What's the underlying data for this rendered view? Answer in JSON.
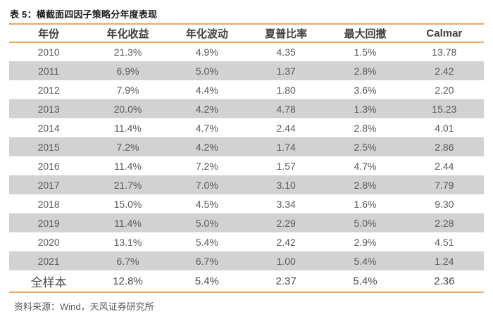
{
  "chart_data": {
    "type": "table",
    "title": "表 5：横截面四因子策略分年度表现",
    "columns": [
      "年份",
      "年化收益",
      "年化波动",
      "夏普比率",
      "最大回撤",
      "Calmar"
    ],
    "rows": [
      [
        "2010",
        "21.3%",
        "4.9%",
        "4.35",
        "1.5%",
        "13.78"
      ],
      [
        "2011",
        "6.9%",
        "5.0%",
        "1.37",
        "2.8%",
        "2.42"
      ],
      [
        "2012",
        "7.9%",
        "4.4%",
        "1.80",
        "3.6%",
        "2.20"
      ],
      [
        "2013",
        "20.0%",
        "4.2%",
        "4.78",
        "1.3%",
        "15.23"
      ],
      [
        "2014",
        "11.4%",
        "4.7%",
        "2.44",
        "2.8%",
        "4.01"
      ],
      [
        "2015",
        "7.2%",
        "4.2%",
        "1.74",
        "2.5%",
        "2.86"
      ],
      [
        "2016",
        "11.4%",
        "7.2%",
        "1.57",
        "4.7%",
        "2.44"
      ],
      [
        "2017",
        "21.7%",
        "7.0%",
        "3.10",
        "2.8%",
        "7.79"
      ],
      [
        "2018",
        "15.0%",
        "4.5%",
        "3.34",
        "1.6%",
        "9.30"
      ],
      [
        "2019",
        "11.4%",
        "5.0%",
        "2.29",
        "5.0%",
        "2.28"
      ],
      [
        "2020",
        "13.1%",
        "5.4%",
        "2.42",
        "2.9%",
        "4.51"
      ],
      [
        "2021",
        "6.7%",
        "6.7%",
        "1.00",
        "5.4%",
        "1.24"
      ],
      [
        "全样本",
        "12.8%",
        "5.4%",
        "2.37",
        "5.4%",
        "2.36"
      ]
    ],
    "summary_row_label": "全样本",
    "source": "资料来源：Wind，天风证券研究所",
    "layout_hints": {
      "zebra_striping": true,
      "striped_row_labels": [
        "2011",
        "2013",
        "2015",
        "2017",
        "2019",
        "2021"
      ],
      "grid": false,
      "rule_lines": "orange top, below header, and bottom"
    }
  },
  "colors": {
    "accent_line": "#F4A75C",
    "stripe": "#D2D2D2",
    "title_text": "#1A1A1A",
    "header_text": "#404040",
    "body_text": "#595959",
    "summary_text": "#4A4A4A",
    "source_text": "#595959",
    "background": "#FFFFFF"
  }
}
